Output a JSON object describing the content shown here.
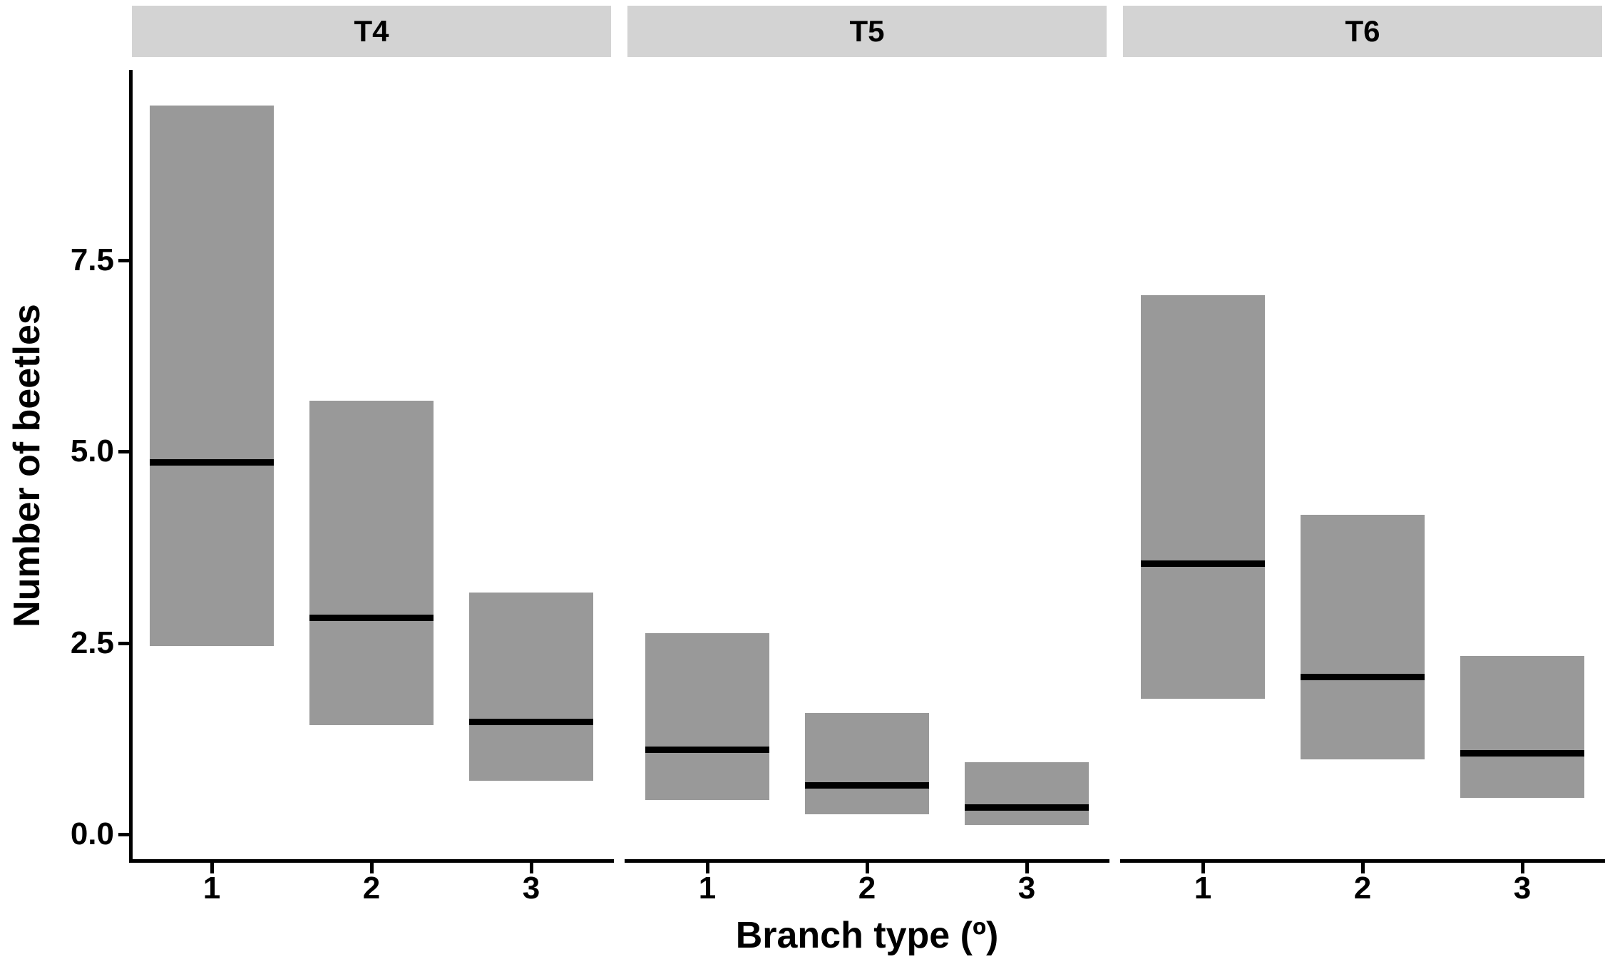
{
  "chart_data": {
    "type": "bar",
    "variant": "faceted-crossbar (range box with median line)",
    "title": "",
    "xlabel": "Branch type (º)",
    "ylabel": "Number of beetles",
    "categories": [
      "1",
      "2",
      "3"
    ],
    "yticks": [
      "0.0",
      "2.5",
      "5.0",
      "7.5"
    ],
    "ytick_values": [
      0.0,
      2.5,
      5.0,
      7.5
    ],
    "ylim": [
      -0.34,
      9.96
    ],
    "grid": false,
    "legend": null,
    "facets": [
      {
        "label": "T4",
        "bars": [
          {
            "category": "1",
            "lower": 2.46,
            "mid": 4.86,
            "upper": 9.52
          },
          {
            "category": "2",
            "lower": 1.42,
            "mid": 2.83,
            "upper": 5.66
          },
          {
            "category": "3",
            "lower": 0.7,
            "mid": 1.47,
            "upper": 3.16
          }
        ]
      },
      {
        "label": "T5",
        "bars": [
          {
            "category": "1",
            "lower": 0.45,
            "mid": 1.1,
            "upper": 2.63
          },
          {
            "category": "2",
            "lower": 0.26,
            "mid": 0.64,
            "upper": 1.58
          },
          {
            "category": "3",
            "lower": 0.12,
            "mid": 0.35,
            "upper": 0.94
          }
        ]
      },
      {
        "label": "T6",
        "bars": [
          {
            "category": "1",
            "lower": 1.77,
            "mid": 3.53,
            "upper": 7.04
          },
          {
            "category": "2",
            "lower": 0.98,
            "mid": 2.05,
            "upper": 4.17
          },
          {
            "category": "3",
            "lower": 0.48,
            "mid": 1.06,
            "upper": 2.33
          }
        ]
      }
    ],
    "colors": {
      "bar_fill": "#999999",
      "median_line": "#000000",
      "strip_bg": "#d3d3d3",
      "axis": "#000000",
      "text": "#000000",
      "background": "#ffffff"
    }
  }
}
